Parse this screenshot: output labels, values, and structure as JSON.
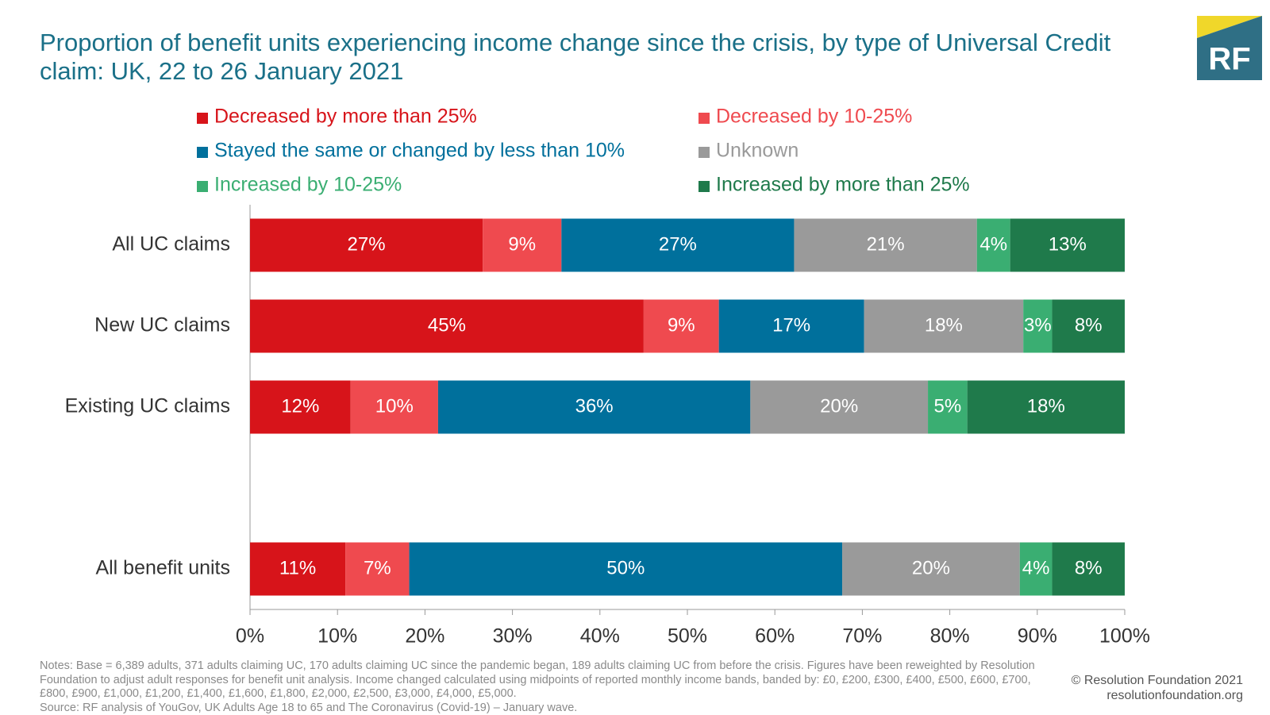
{
  "chart_data": {
    "type": "stacked-horizontal-bar",
    "title": "Proportion of benefit units experiencing income change since the crisis, by type of Universal Credit claim: UK, 22 to 26 January 2021",
    "categories": [
      "All UC claims",
      "New UC claims",
      "Existing UC claims",
      null,
      "All benefit units"
    ],
    "series": [
      {
        "name": "Decreased by more than 25%",
        "color": "#d7141a",
        "values": [
          26.6,
          45.0,
          11.5,
          null,
          10.9
        ],
        "value_labels": [
          "27%",
          "45%",
          "12%",
          null,
          "11%"
        ]
      },
      {
        "name": "Decreased by 10-25%",
        "color": "#ef4a4f",
        "values": [
          9.0,
          8.6,
          10.0,
          null,
          7.3
        ],
        "value_labels": [
          "9%",
          "9%",
          "10%",
          null,
          "7%"
        ]
      },
      {
        "name": "Stayed the same or changed by less than 10%",
        "color": "#00709c",
        "values": [
          26.6,
          16.6,
          35.7,
          null,
          49.5
        ],
        "value_labels": [
          "27%",
          "17%",
          "36%",
          null,
          "50%"
        ]
      },
      {
        "name": "Unknown",
        "color": "#9a9a9a",
        "values": [
          20.9,
          18.2,
          20.3,
          null,
          20.3
        ],
        "value_labels": [
          "21%",
          "18%",
          "20%",
          null,
          "20%"
        ]
      },
      {
        "name": "Increased by 10-25%",
        "color": "#3aae72",
        "values": [
          3.8,
          3.3,
          4.5,
          null,
          3.7
        ],
        "value_labels": [
          "4%",
          "3%",
          "5%",
          null,
          "4%"
        ]
      },
      {
        "name": "Increased by more than 25%",
        "color": "#1f7a4b",
        "values": [
          13.1,
          8.3,
          18.0,
          null,
          8.3
        ],
        "value_labels": [
          "13%",
          "8%",
          "18%",
          null,
          "8%"
        ]
      }
    ],
    "xlim": [
      0,
      100
    ],
    "xticks": [
      {
        "value": 0,
        "label": "0%"
      },
      {
        "value": 10,
        "label": "10%"
      },
      {
        "value": 20,
        "label": "20%"
      },
      {
        "value": 30,
        "label": "30%"
      },
      {
        "value": 40,
        "label": "40%"
      },
      {
        "value": 50,
        "label": "50%"
      },
      {
        "value": 60,
        "label": "60%"
      },
      {
        "value": 70,
        "label": "70%"
      },
      {
        "value": 80,
        "label": "80%"
      },
      {
        "value": 90,
        "label": "90%"
      },
      {
        "value": 100,
        "label": "100%"
      }
    ],
    "notes": "Notes: Base = 6,389 adults, 371 adults claiming UC, 170 adults claiming UC since the pandemic began, 189 adults claiming UC from before the crisis. Figures have been reweighted by Resolution Foundation to adjust adult responses for benefit unit analysis. Income changed calculated using midpoints of reported monthly income bands, banded by: £0, £200, £300, £400, £500, £600, £700, £800, £900, £1,000, £1,200, £1,400, £1,600, £1,800, £2,000, £2,500, £3,000, £4,000, £5,000.",
    "source": "Source: RF analysis of YouGov, UK Adults Age 18 to 65 and The Coronavirus (Covid-19) – January wave.",
    "copyright": "© Resolution Foundation 2021",
    "website": "resolutionfoundation.org",
    "logo": "RF"
  }
}
